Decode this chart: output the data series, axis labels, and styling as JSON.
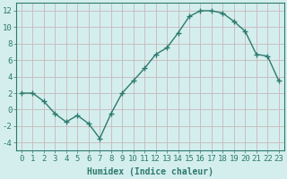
{
  "x": [
    0,
    1,
    2,
    3,
    4,
    5,
    6,
    7,
    8,
    9,
    10,
    11,
    12,
    13,
    14,
    15,
    16,
    17,
    18,
    19,
    20,
    21,
    22,
    23
  ],
  "y": [
    2,
    2,
    1,
    -0.5,
    -1.5,
    -0.7,
    -1.7,
    -3.5,
    -0.5,
    2,
    3.5,
    5,
    6.7,
    7.5,
    9.3,
    11.3,
    12,
    12,
    11.7,
    10.7,
    9.5,
    6.7,
    6.5,
    3.5
  ],
  "line_color": "#2d7a6e",
  "marker": "+",
  "marker_size": 5,
  "bg_color": "#d4eeee",
  "grid_color": "#c8b8b8",
  "xlabel": "Humidex (Indice chaleur)",
  "ylim": [
    -5,
    13
  ],
  "xlim": [
    -0.5,
    23.5
  ],
  "yticks": [
    -4,
    -2,
    0,
    2,
    4,
    6,
    8,
    10,
    12
  ],
  "xticks": [
    0,
    1,
    2,
    3,
    4,
    5,
    6,
    7,
    8,
    9,
    10,
    11,
    12,
    13,
    14,
    15,
    16,
    17,
    18,
    19,
    20,
    21,
    22,
    23
  ],
  "xlabel_fontsize": 7,
  "tick_fontsize": 6.5,
  "line_width": 1.0,
  "marker_color": "#2d7a6e",
  "label_color": "#2d7a6e",
  "spine_color": "#2d7a6e"
}
